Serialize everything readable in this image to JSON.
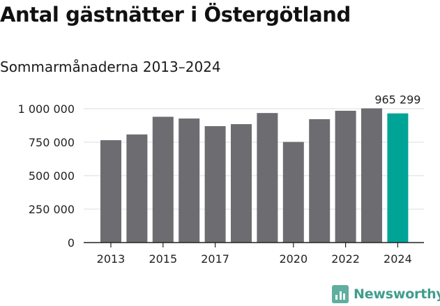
{
  "title": "Antal gästnätter i Östergötland",
  "subtitle": "Sommarmånaderna 2013–2024",
  "brand": {
    "name": "Newsworthy",
    "icon": "bar-chart-logo-icon",
    "color": "#3f9d8c"
  },
  "colors": {
    "bar": "#6d6c71",
    "highlight": "#00a497",
    "grid": "#dddddd",
    "axis": "#222222"
  },
  "chart_data": {
    "type": "bar",
    "categories": [
      "2013",
      "2014",
      "2015",
      "2016",
      "2017",
      "2018",
      "2019",
      "2020",
      "2021",
      "2022",
      "2023",
      "2024"
    ],
    "values": [
      765000,
      808000,
      940000,
      927000,
      870000,
      885000,
      968000,
      752000,
      922000,
      985000,
      1003000,
      965299
    ],
    "highlight_index": 11,
    "data_labels": [
      {
        "index": 11,
        "text": "965 299"
      }
    ],
    "ylim": [
      0,
      1000000
    ],
    "yticks": [
      0,
      250000,
      500000,
      750000,
      1000000
    ],
    "ytick_labels": [
      "0",
      "250 000",
      "500 000",
      "750 000",
      "1 000 000"
    ],
    "xtick_labels": [
      "2013",
      "2015",
      "2017",
      "2020",
      "2022",
      "2024"
    ],
    "grid": true,
    "xlabel": "",
    "ylabel": ""
  }
}
